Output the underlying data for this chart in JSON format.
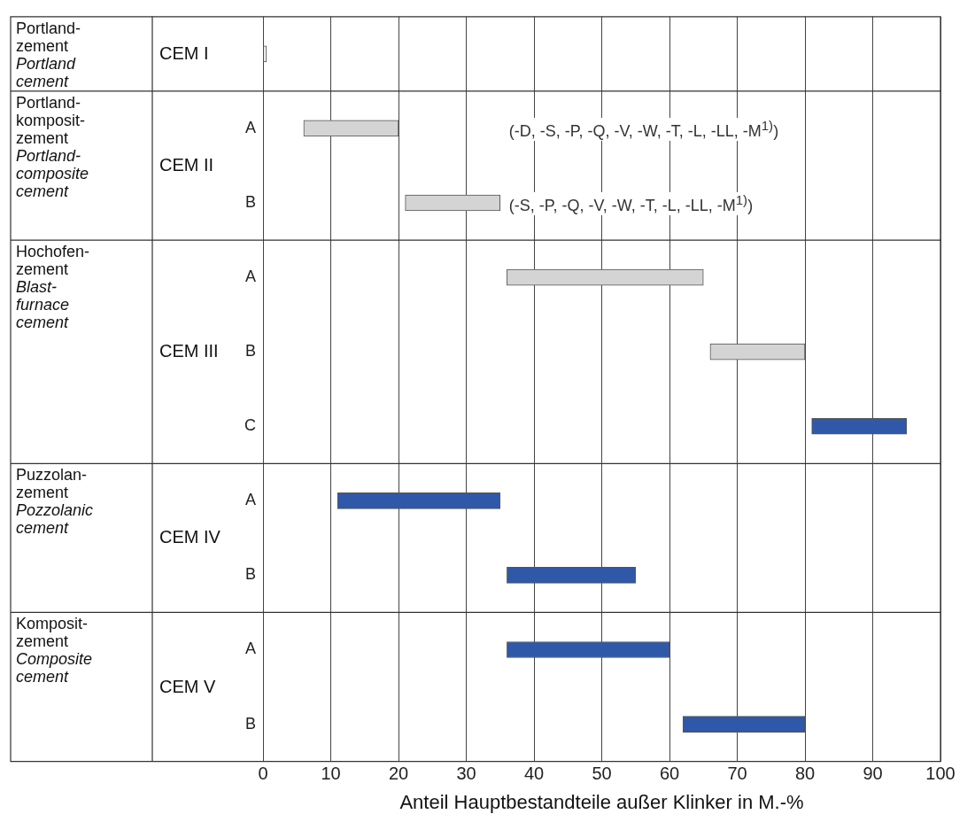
{
  "chart_data": {
    "type": "bar",
    "orientation": "horizontal",
    "xlabel": "Anteil Hauptbestandteile außer Klinker in M.-%",
    "categories": [
      null,
      "A",
      "B",
      "A",
      "B",
      "C",
      "A",
      "B",
      "A",
      "B"
    ],
    "base": [
      0,
      6,
      21,
      36,
      66,
      81,
      11,
      36,
      36,
      62
    ],
    "values": [
      0.5,
      14,
      14,
      29,
      14,
      14,
      24,
      19,
      24,
      18
    ],
    "colors": [
      "#ffffff",
      "#d4d4d4",
      "#d4d4d4",
      "#d4d4d4",
      "#d4d4d4",
      "#2f58a8",
      "#2f58a8",
      "#2f58a8",
      "#2f58a8",
      "#2f58a8"
    ],
    "xlim": [
      0,
      100
    ],
    "xticks": [
      0,
      10,
      20,
      30,
      40,
      50,
      60,
      70,
      80,
      90,
      100
    ],
    "grid": "x",
    "legend": false,
    "annotations": [
      "Portland-\nzement",
      "Portland\ncement",
      "CEM I",
      "Portland-\nkomposit-\nzement",
      "Portland-\ncomposite\ncement",
      "CEM II",
      "Hochofen-\nzement",
      "Blast-\nfurnace\ncement",
      "CEM III",
      "Puzzolan-\nzement",
      "Pozzolanic\ncement",
      "CEM IV",
      "Komposit-\nzement",
      "Composite\ncement",
      "CEM V",
      "(-D, -S, -P, -Q, -V, -W, -T, -L, -LL, -M$^{1)}$)",
      "(-S, -P, -Q, -V, -W, -T, -L, -LL, -M$^{1)}$)"
    ]
  }
}
